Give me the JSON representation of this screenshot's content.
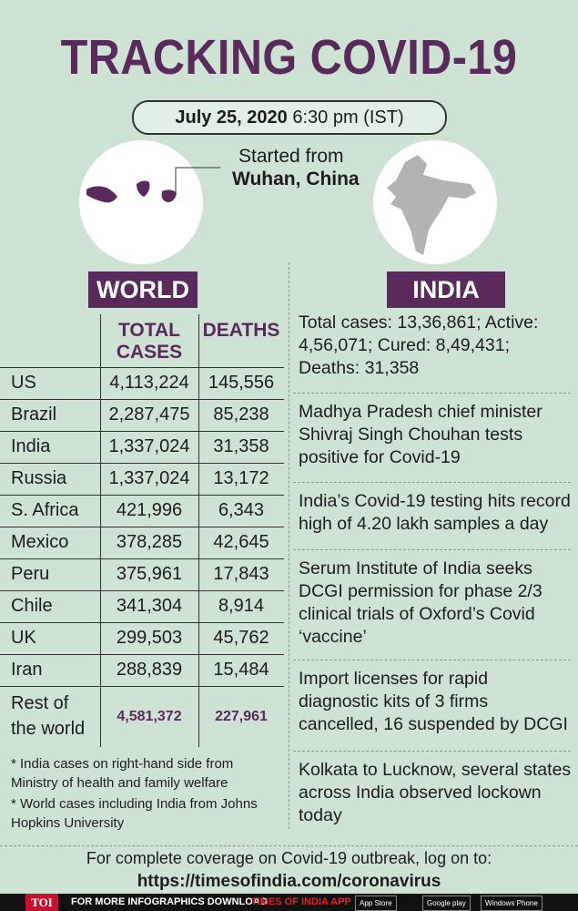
{
  "header": {
    "title": "TRACKING COVID-19",
    "date": "July 25, 2020",
    "time": "6:30 pm (IST)"
  },
  "origin": {
    "label": "Started from",
    "place": "Wuhan, China"
  },
  "world": {
    "heading": "WORLD",
    "columns": [
      "TOTAL CASES",
      "DEATHS"
    ],
    "rows": [
      [
        "US",
        "4,113,224",
        "145,556"
      ],
      [
        "Brazil",
        "2,287,475",
        "85,238"
      ],
      [
        "India",
        "1,337,024",
        "31,358"
      ],
      [
        "Russia",
        "1,337,024",
        "13,172"
      ],
      [
        "S. Africa",
        "421,996",
        "6,343"
      ],
      [
        "Mexico",
        "378,285",
        "42,645"
      ],
      [
        "Peru",
        "375,961",
        "17,843"
      ],
      [
        "Chile",
        "341,304",
        "8,914"
      ],
      [
        "UK",
        "299,503",
        "45,762"
      ],
      [
        "Iran",
        "288,839",
        "15,484"
      ],
      [
        "Rest of the world",
        "4,581,372",
        "227,961"
      ]
    ],
    "notes": [
      "* India cases on right-hand side from Ministry of health and family welfare",
      "* World cases including India from Johns Hopkins University"
    ]
  },
  "india": {
    "heading": "INDIA",
    "items": [
      "Total cases: 13,36,861; Active: 4,56,071; Cured: 8,49,431; Deaths: 31,358",
      "Madhya Pradesh chief minister Shivraj Singh Chouhan tests positive for Covid-19",
      "India’s Covid-19 testing hits record high of 4.20 lakh samples a day",
      "Serum Institute of India seeks DCGI permission for phase 2/3 clinical trials of Oxford’s Covid ‘vaccine’",
      "Import licenses for rapid diagnostic kits of 3 firms cancelled, 16 suspended by DCGI",
      "Kolkata to Lucknow, several states across India observed lockown today"
    ]
  },
  "footer": {
    "text": "For complete coverage on Covid-19 outbreak, log on to:",
    "url": "https://timesofindia.com/coronavirus"
  },
  "bar": {
    "logo": "TOI",
    "text": "FOR MORE  INFOGRAPHICS DOWNLOAD",
    "app": "TIMES OF INDIA APP",
    "badges": [
      "App Store",
      "Google play",
      "Windows Phone"
    ]
  }
}
